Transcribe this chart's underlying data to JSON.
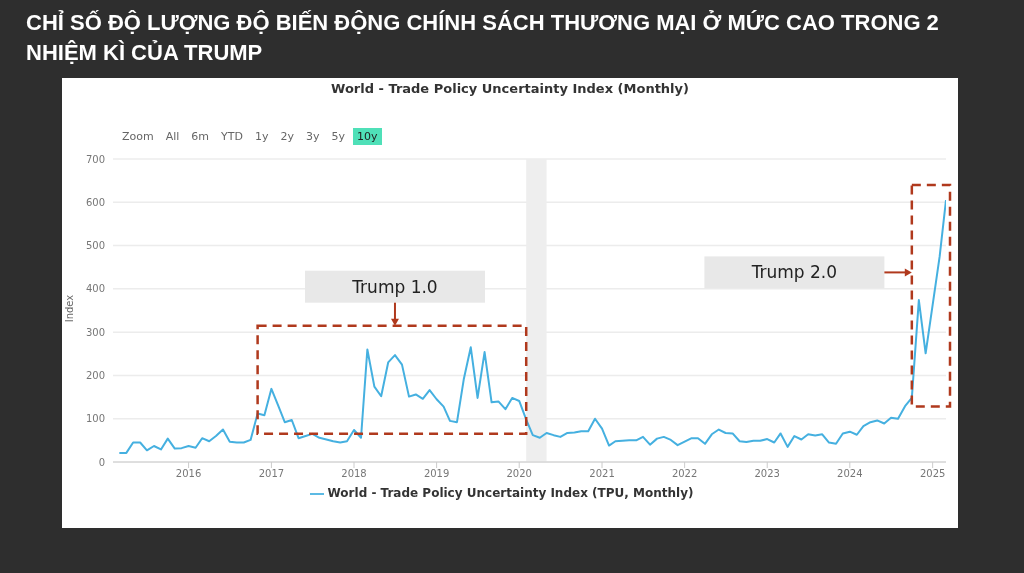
{
  "chart_data": {
    "type": "line",
    "title": "CHỈ SỐ ĐỘ LƯỢNG ĐỘ BIẾN ĐỘNG CHÍNH SÁCH THƯƠNG MẠI Ở MỨC CAO TRONG 2 NHIỆM KÌ CỦA TRUMP",
    "subtitle": "World - Trade Policy Uncertainty Index (Monthly)",
    "ylabel": "Index",
    "annotations": [
      "Zoom",
      "All",
      "6m",
      "YTD",
      "1y",
      "2y",
      "3y",
      "5y",
      "10y",
      "Trump 1.0",
      "Trump 2.0"
    ],
    "x": [
      "2015-03",
      "2015-04",
      "2015-05",
      "2015-06",
      "2015-07",
      "2015-08",
      "2015-09",
      "2015-10",
      "2015-11",
      "2015-12",
      "2016-01",
      "2016-02",
      "2016-03",
      "2016-04",
      "2016-05",
      "2016-06",
      "2016-07",
      "2016-08",
      "2016-09",
      "2016-10",
      "2016-11",
      "2016-12",
      "2017-01",
      "2017-02",
      "2017-03",
      "2017-04",
      "2017-05",
      "2017-06",
      "2017-07",
      "2017-08",
      "2017-09",
      "2017-10",
      "2017-11",
      "2017-12",
      "2018-01",
      "2018-02",
      "2018-03",
      "2018-04",
      "2018-05",
      "2018-06",
      "2018-07",
      "2018-08",
      "2018-09",
      "2018-10",
      "2018-11",
      "2018-12",
      "2019-01",
      "2019-02",
      "2019-03",
      "2019-04",
      "2019-05",
      "2019-06",
      "2019-07",
      "2019-08",
      "2019-09",
      "2019-10",
      "2019-11",
      "2019-12",
      "2020-01",
      "2020-02",
      "2020-03",
      "2020-04",
      "2020-05",
      "2020-06",
      "2020-07",
      "2020-08",
      "2020-09",
      "2020-10",
      "2020-11",
      "2020-12",
      "2021-01",
      "2021-02",
      "2021-03",
      "2021-04",
      "2021-05",
      "2021-06",
      "2021-07",
      "2021-08",
      "2021-09",
      "2021-10",
      "2021-11",
      "2021-12",
      "2022-01",
      "2022-02",
      "2022-03",
      "2022-04",
      "2022-05",
      "2022-06",
      "2022-07",
      "2022-08",
      "2022-09",
      "2022-10",
      "2022-11",
      "2022-12",
      "2023-01",
      "2023-02",
      "2023-03",
      "2023-04",
      "2023-05",
      "2023-06",
      "2023-07",
      "2023-08",
      "2023-09",
      "2023-10",
      "2023-11",
      "2023-12",
      "2024-01",
      "2024-02",
      "2024-03",
      "2024-04",
      "2024-05",
      "2024-06",
      "2024-07",
      "2024-08",
      "2024-09",
      "2024-10",
      "2024-11",
      "2024-12",
      "2025-01",
      "2025-02",
      "2025-03"
    ],
    "series": [
      {
        "name": "World - Trade Policy Uncertainty Index (TPU, Monthly)",
        "color": "#45b0e0",
        "values": [
          21,
          21,
          45,
          45,
          27,
          37,
          29,
          54,
          31,
          32,
          37,
          33,
          55,
          48,
          60,
          75,
          47,
          45,
          45,
          51,
          112,
          108,
          169,
          129,
          92,
          97,
          55,
          60,
          65,
          56,
          52,
          48,
          45,
          48,
          74,
          56,
          260,
          174,
          152,
          230,
          247,
          225,
          151,
          156,
          146,
          166,
          145,
          128,
          95,
          92,
          191,
          265,
          148,
          254,
          138,
          140,
          122,
          148,
          141,
          98,
          62,
          56,
          67,
          62,
          58,
          67,
          68,
          71,
          71,
          100,
          77,
          38,
          48,
          49,
          50,
          50,
          58,
          40,
          54,
          58,
          51,
          39,
          47,
          55,
          55,
          42,
          64,
          75,
          67,
          66,
          48,
          46,
          49,
          49,
          53,
          45,
          66,
          35,
          60,
          52,
          64,
          61,
          64,
          45,
          42,
          66,
          70,
          63,
          83,
          92,
          96,
          89,
          102,
          100,
          129,
          148,
          374,
          251,
          363,
          475,
          605
        ]
      }
    ],
    "xlim": [
      "2015-02",
      "2025-03"
    ],
    "xticks": [
      "2016",
      "2017",
      "2018",
      "2019",
      "2020",
      "2021",
      "2022",
      "2023",
      "2024",
      "2025"
    ],
    "ylim": [
      0,
      700
    ],
    "yticks": [
      0,
      100,
      200,
      300,
      400,
      500,
      600,
      700
    ],
    "bands": [
      {
        "axis": "x",
        "from": "2020-02",
        "to": "2020-05",
        "color": "#eeeeee"
      }
    ],
    "grid": "y",
    "legend": "bottom",
    "marker": "none",
    "line_style": "solid"
  }
}
